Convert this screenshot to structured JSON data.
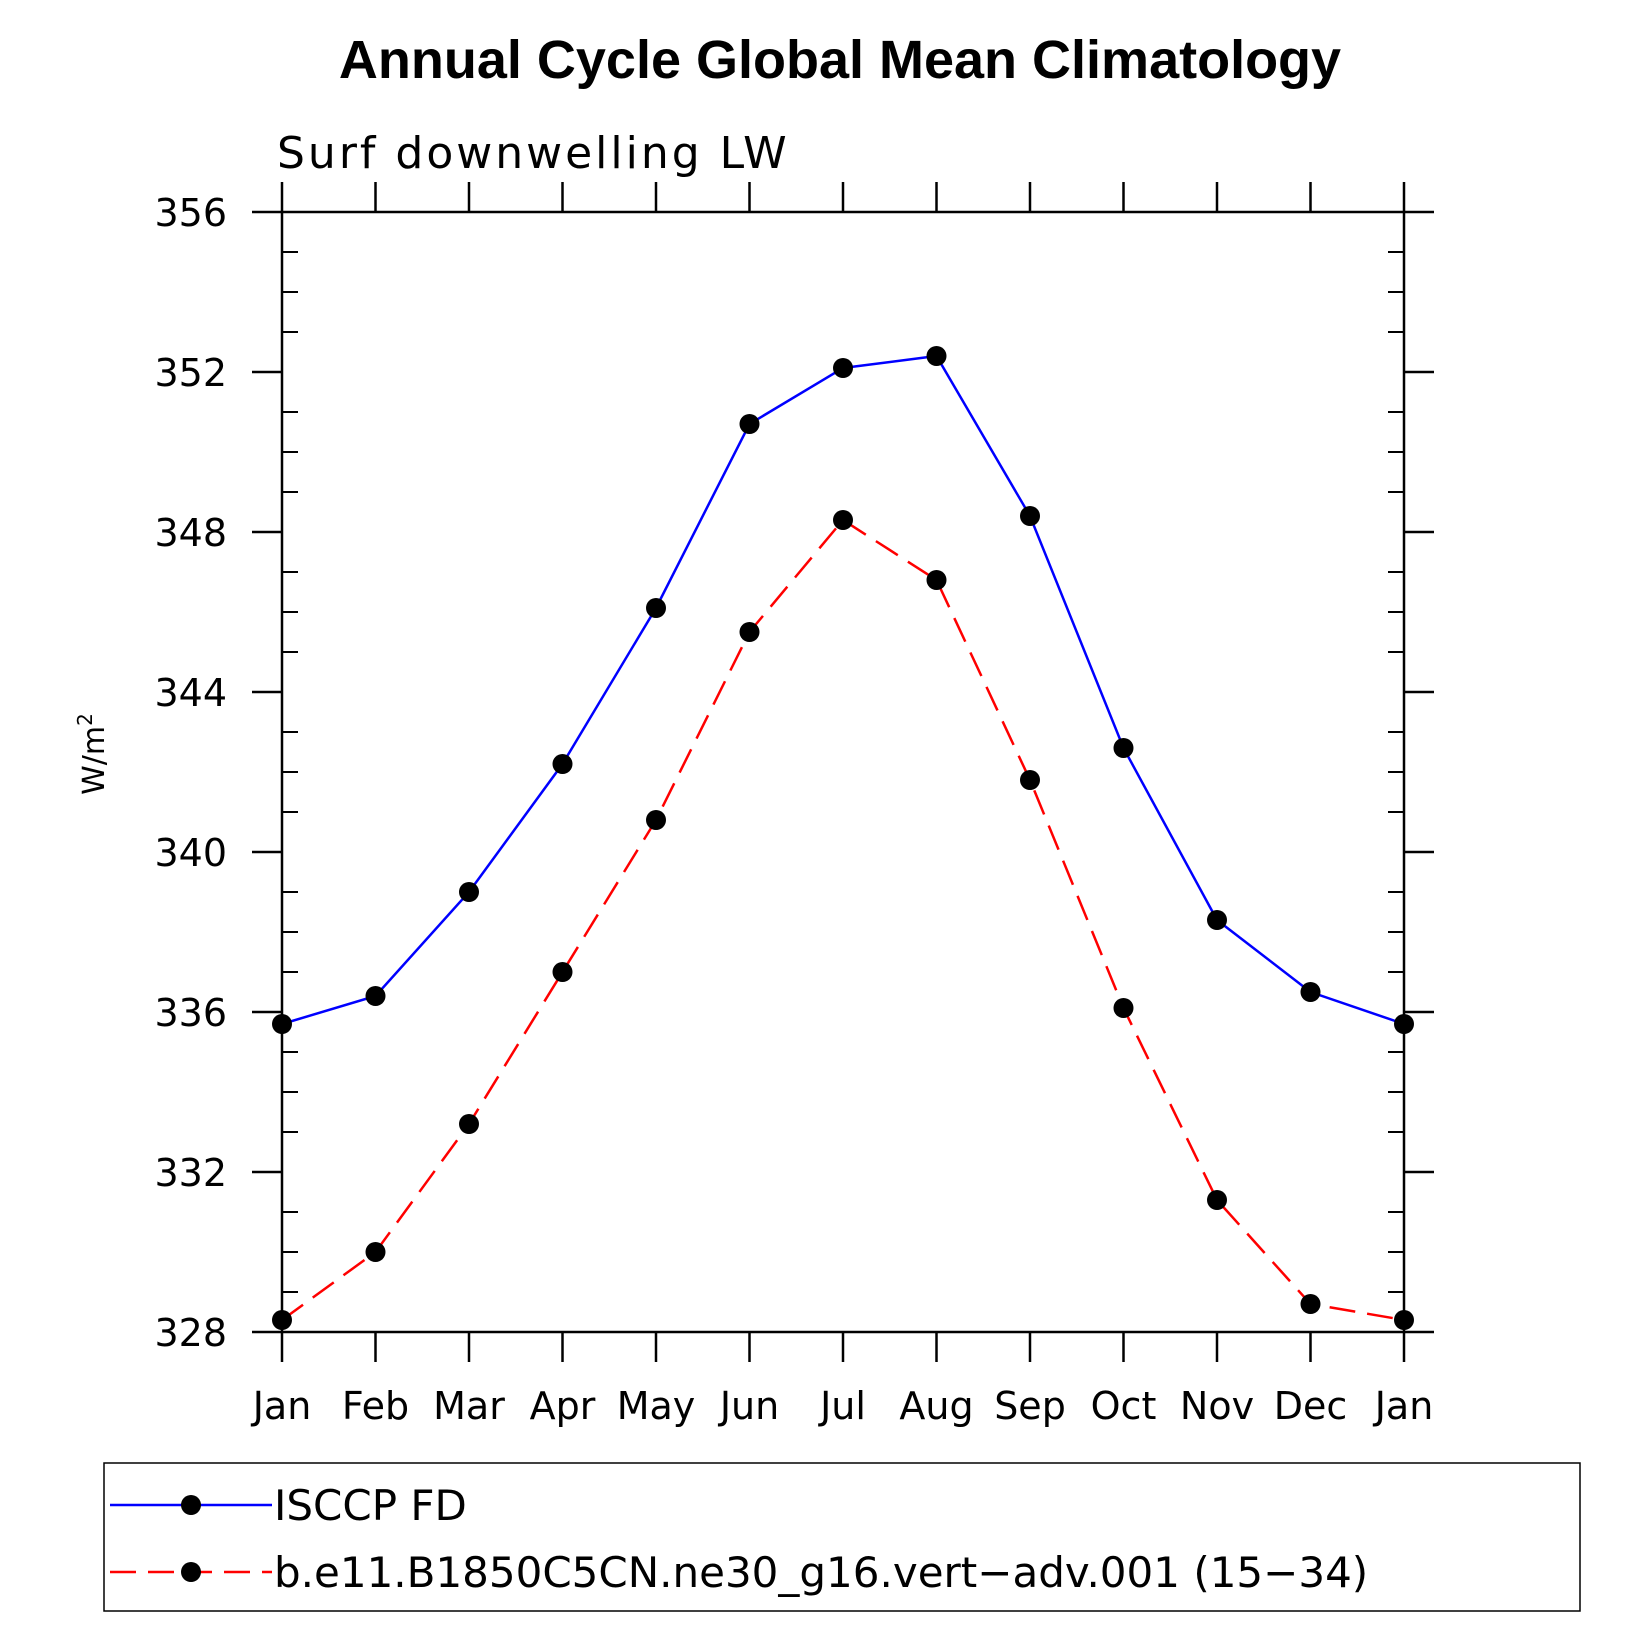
{
  "chart_data": {
    "type": "line",
    "title": "Annual Cycle Global Mean Climatology",
    "subtitle": "Surf downwelling LW",
    "ylabel": "W/m",
    "ylabel_superscript": "2",
    "categories": [
      "Jan",
      "Feb",
      "Mar",
      "Apr",
      "May",
      "Jun",
      "Jul",
      "Aug",
      "Sep",
      "Oct",
      "Nov",
      "Dec",
      "Jan"
    ],
    "ylim": [
      328,
      356
    ],
    "yticks": [
      328,
      332,
      336,
      340,
      344,
      348,
      352,
      356
    ],
    "series": [
      {
        "name": "ISCCP FD",
        "color": "#0000ff",
        "dash": "solid",
        "values": [
          335.7,
          336.4,
          339.0,
          342.2,
          346.1,
          350.7,
          352.1,
          352.4,
          348.4,
          342.6,
          338.3,
          336.5,
          335.7
        ]
      },
      {
        "name": "b.e11.B1850C5CN.ne30_g16.vert−adv.001 (15−34)",
        "color": "#ff0000",
        "dash": "dashed",
        "values": [
          328.3,
          330.0,
          333.2,
          337.0,
          340.8,
          345.5,
          348.3,
          346.8,
          341.8,
          336.1,
          331.3,
          328.7,
          328.3
        ]
      }
    ],
    "legend_position": "bottom",
    "grid": false
  }
}
